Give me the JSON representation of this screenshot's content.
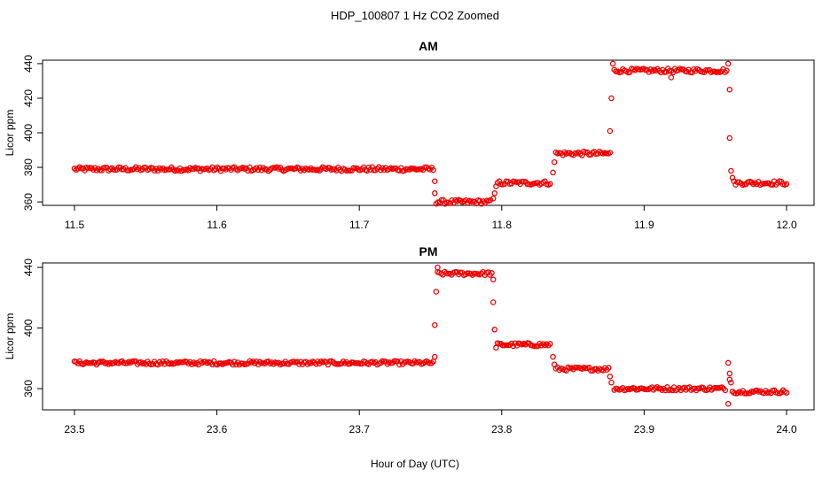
{
  "figure": {
    "title": "HDP_100807  1 Hz CO2 Zoomed",
    "xlabel": "Hour of Day (UTC)"
  },
  "point_color": "#ee0000",
  "chart_data": [
    {
      "type": "scatter",
      "title": "AM",
      "xlabel": "",
      "ylabel": "Licor ppm",
      "xlim": [
        11.5,
        12.0
      ],
      "ylim": [
        358,
        442
      ],
      "xticks": [
        "11.5",
        "11.6",
        "11.7",
        "11.8",
        "11.9",
        "12.0"
      ],
      "yticks": [
        "360",
        "380",
        "400",
        "420",
        "440"
      ],
      "segments": [
        {
          "x_start": 11.5,
          "x_end": 11.752,
          "y": 379
        },
        {
          "x_start": 11.754,
          "x_end": 11.792,
          "y": 360
        },
        {
          "x_start": 11.797,
          "x_end": 11.834,
          "y": 371
        },
        {
          "x_start": 11.838,
          "x_end": 11.876,
          "y": 388
        },
        {
          "x_start": 11.879,
          "x_end": 11.958,
          "y": 436
        },
        {
          "x_start": 11.963,
          "x_end": 12.0,
          "y": 371
        }
      ],
      "transition_points": [
        [
          11.753,
          372
        ],
        [
          11.753,
          365
        ],
        [
          11.794,
          362
        ],
        [
          11.795,
          365
        ],
        [
          11.796,
          369
        ],
        [
          11.836,
          377
        ],
        [
          11.837,
          383
        ],
        [
          11.876,
          401
        ],
        [
          11.877,
          420
        ],
        [
          11.878,
          440
        ],
        [
          11.919,
          432
        ],
        [
          11.959,
          440
        ],
        [
          11.96,
          425
        ],
        [
          11.96,
          397
        ],
        [
          11.961,
          378
        ],
        [
          11.962,
          374
        ]
      ]
    },
    {
      "type": "scatter",
      "title": "PM",
      "xlabel": "",
      "ylabel": "Licor ppm",
      "xlim": [
        23.5,
        24.0
      ],
      "ylim": [
        346,
        443
      ],
      "xticks": [
        "23.5",
        "23.6",
        "23.7",
        "23.8",
        "23.9",
        "24.0"
      ],
      "yticks": [
        "360",
        "400",
        "440"
      ],
      "segments": [
        {
          "x_start": 23.5,
          "x_end": 23.752,
          "y": 377
        },
        {
          "x_start": 23.755,
          "x_end": 23.793,
          "y": 436
        },
        {
          "x_start": 23.797,
          "x_end": 23.834,
          "y": 389
        },
        {
          "x_start": 23.838,
          "x_end": 23.875,
          "y": 373
        },
        {
          "x_start": 23.879,
          "x_end": 23.957,
          "y": 360
        },
        {
          "x_start": 23.962,
          "x_end": 24.0,
          "y": 358
        }
      ],
      "transition_points": [
        [
          23.753,
          381
        ],
        [
          23.753,
          402
        ],
        [
          23.754,
          424
        ],
        [
          23.755,
          440
        ],
        [
          23.794,
          432
        ],
        [
          23.794,
          417
        ],
        [
          23.795,
          399
        ],
        [
          23.796,
          387
        ],
        [
          23.836,
          381
        ],
        [
          23.837,
          376
        ],
        [
          23.876,
          368
        ],
        [
          23.877,
          364
        ],
        [
          23.959,
          377
        ],
        [
          23.96,
          370
        ],
        [
          23.96,
          366
        ],
        [
          23.961,
          364
        ],
        [
          23.959,
          350
        ]
      ]
    }
  ]
}
